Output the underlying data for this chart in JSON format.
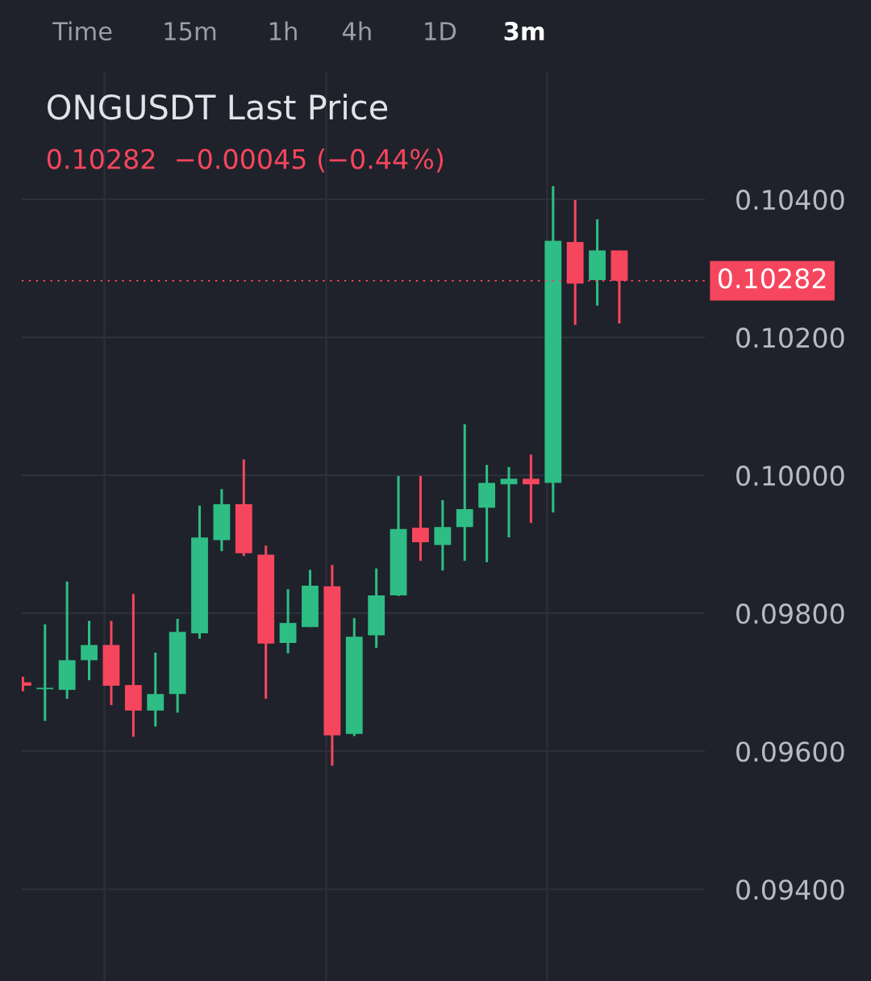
{
  "chart_data": {
    "type": "candlestick",
    "title": "ONGUSDT Last Price",
    "subtitle": "0.10282  −0.00045 (−0.44%)",
    "annotations": [
      "Time",
      "15m",
      "1h",
      "4h",
      "1D",
      "3m"
    ],
    "categories": [
      null,
      null,
      null,
      null,
      null,
      null,
      null,
      null,
      null,
      null,
      null,
      null,
      null,
      null,
      null,
      null,
      null,
      null,
      null,
      null,
      null,
      null,
      null,
      null,
      null,
      null,
      null,
      null
    ],
    "ohlc": [
      [
        0.097,
        0.09708,
        0.09687,
        0.09695
      ],
      [
        0.0969,
        0.09784,
        0.09644,
        0.0969
      ],
      [
        0.09689,
        0.09846,
        0.09676,
        0.09732
      ],
      [
        0.09732,
        0.09789,
        0.09703,
        0.09754
      ],
      [
        0.09754,
        0.09789,
        0.09667,
        0.09695
      ],
      [
        0.09696,
        0.09828,
        0.09621,
        0.09659
      ],
      [
        0.09659,
        0.09743,
        0.09636,
        0.09683
      ],
      [
        0.09683,
        0.09792,
        0.09656,
        0.09773
      ],
      [
        0.09771,
        0.09956,
        0.09763,
        0.0991
      ],
      [
        0.09906,
        0.0998,
        0.0989,
        0.09958
      ],
      [
        0.09958,
        0.10023,
        0.09883,
        0.09887
      ],
      [
        0.09885,
        0.09898,
        0.09676,
        0.09756
      ],
      [
        0.09757,
        0.09835,
        0.09742,
        0.09786
      ],
      [
        0.0978,
        0.09863,
        0.0978,
        0.0984
      ],
      [
        0.09839,
        0.0987,
        0.09579,
        0.09623
      ],
      [
        0.09625,
        0.09793,
        0.09622,
        0.09766
      ],
      [
        0.09768,
        0.09865,
        0.0975,
        0.09826
      ],
      [
        0.09826,
        0.09999,
        0.09825,
        0.09922
      ],
      [
        0.09924,
        0.09999,
        0.09876,
        0.09903
      ],
      [
        0.09899,
        0.09964,
        0.09862,
        0.09925
      ],
      [
        0.09925,
        0.10074,
        0.09876,
        0.09951
      ],
      [
        0.09953,
        0.10015,
        0.09874,
        0.09989
      ],
      [
        0.09987,
        0.10012,
        0.0991,
        0.09995
      ],
      [
        0.09995,
        0.1003,
        0.09931,
        0.09987
      ],
      [
        0.09989,
        0.10419,
        0.09946,
        0.1034
      ],
      [
        0.10338,
        0.10399,
        0.10218,
        0.10278
      ],
      [
        0.10283,
        0.10371,
        0.10246,
        0.10326
      ],
      [
        0.10326,
        0.10326,
        0.1022,
        0.10282
      ]
    ],
    "colors": [
      "#f6465d",
      "#2ebd85",
      "#2ebd85",
      "#2ebd85",
      "#f6465d",
      "#f6465d",
      "#2ebd85",
      "#2ebd85",
      "#2ebd85",
      "#2ebd85",
      "#f6465d",
      "#f6465d",
      "#2ebd85",
      "#2ebd85",
      "#f6465d",
      "#2ebd85",
      "#2ebd85",
      "#2ebd85",
      "#f6465d",
      "#2ebd85",
      "#2ebd85",
      "#2ebd85",
      "#2ebd85",
      "#f6465d",
      "#2ebd85",
      "#f6465d",
      "#2ebd85",
      "#f6465d"
    ],
    "ylim": [
      0.09267,
      0.10586
    ],
    "yticks": [
      {
        "value": 0.094,
        "label": "0.09400"
      },
      {
        "value": 0.096,
        "label": "0.09600"
      },
      {
        "value": 0.098,
        "label": "0.09800"
      },
      {
        "value": 0.1,
        "label": "0.10000"
      },
      {
        "value": 0.102,
        "label": "0.10200"
      },
      {
        "value": 0.104,
        "label": "0.10400"
      }
    ],
    "ref_lines": [
      {
        "axis": "y",
        "value": 0.10282,
        "label": "0.10282",
        "color": "#f6465d",
        "line_style": "dotted"
      }
    ],
    "grid": true,
    "tick_labels": "y",
    "legend": false
  }
}
